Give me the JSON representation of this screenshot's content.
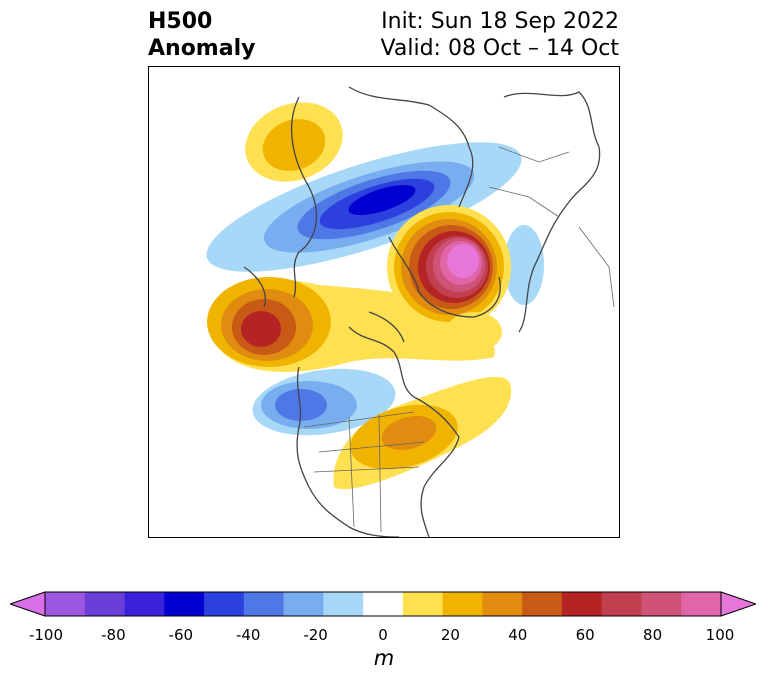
{
  "header": {
    "title_line1": "H500",
    "title_line2": "Anomaly",
    "init": "Init: Sun 18 Sep 2022",
    "valid": "Valid: 08 Oct – 14 Oct"
  },
  "colorbar": {
    "unit": "m",
    "min": -100,
    "max": 100,
    "ticks": [
      "-100",
      "-80",
      "-60",
      "-40",
      "-20",
      "0",
      "20",
      "40",
      "60",
      "80",
      "100"
    ],
    "colors": [
      "#d86fe6",
      "#9c57e0",
      "#6a3ed9",
      "#3a22d9",
      "#0000d0",
      "#2b40dc",
      "#4f78e6",
      "#78aef0",
      "#a8d8f8",
      "#ffffff",
      "#ffe050",
      "#f0b400",
      "#e08c10",
      "#c85a16",
      "#b42424",
      "#c04050",
      "#cf5278",
      "#e066a8",
      "#e676d8"
    ]
  },
  "map": {
    "anomalies": [
      {
        "name": "alaska-high",
        "sign": "+",
        "peak_m": 25
      },
      {
        "name": "siberia-low",
        "sign": "-",
        "peak_m": -60
      },
      {
        "name": "east-asia-low",
        "sign": "-",
        "peak_m": -15
      },
      {
        "name": "pacific-high",
        "sign": "+",
        "peak_m": 65
      },
      {
        "name": "europe-high",
        "sign": "+",
        "peak_m": 95
      },
      {
        "name": "europe-east-low",
        "sign": "-",
        "peak_m": -15
      },
      {
        "name": "arctic-high",
        "sign": "+",
        "peak_m": 15
      },
      {
        "name": "west-canada-low",
        "sign": "-",
        "peak_m": -45
      },
      {
        "name": "eastern-us-high",
        "sign": "+",
        "peak_m": 40
      }
    ]
  }
}
